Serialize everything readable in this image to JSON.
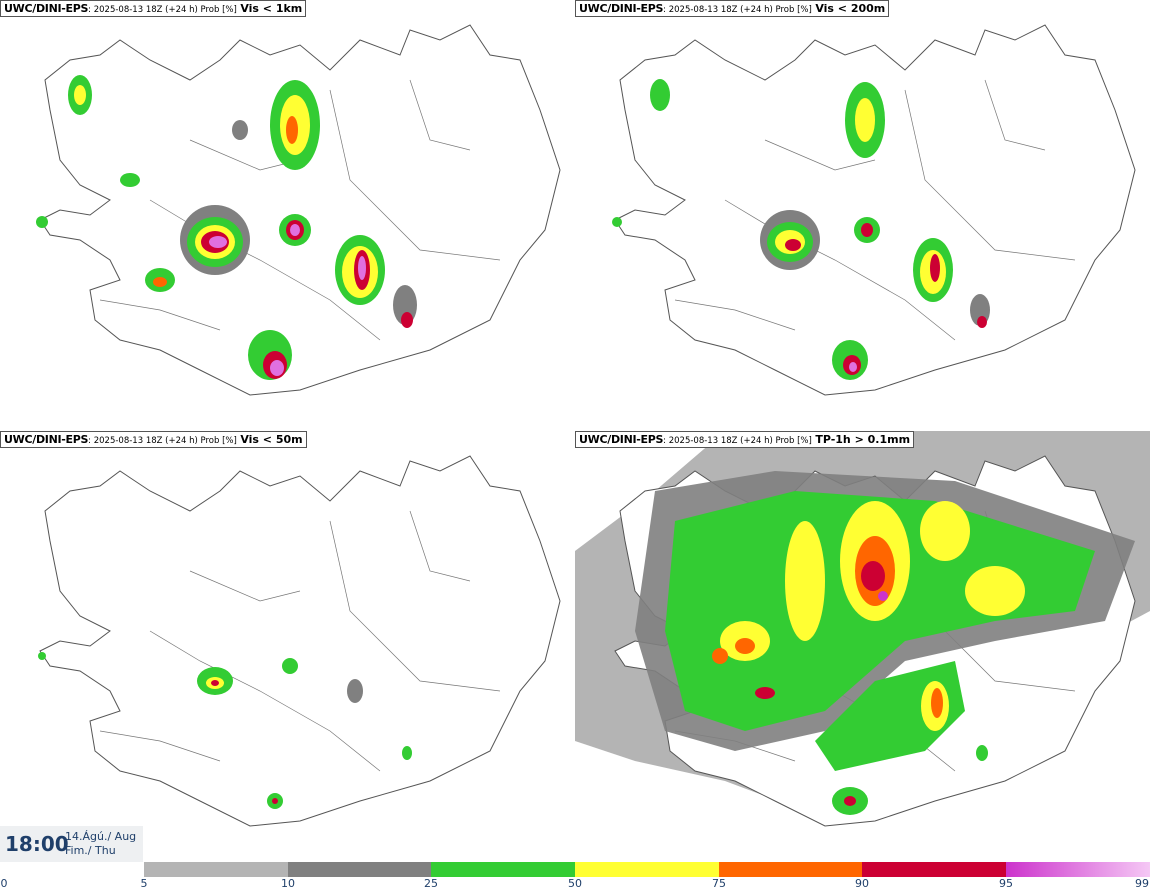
{
  "panels": [
    {
      "source": "UWC/DINI-EPS",
      "meta": ": 2025-08-13 18Z (+24 h) Prob [%]",
      "variable": "Vis < 1km"
    },
    {
      "source": "UWC/DINI-EPS",
      "meta": ": 2025-08-13 18Z (+24 h) Prob [%]",
      "variable": "Vis < 200m"
    },
    {
      "source": "UWC/DINI-EPS",
      "meta": ": 2025-08-13 18Z (+24 h) Prob [%]",
      "variable": "Vis < 50m"
    },
    {
      "source": "UWC/DINI-EPS",
      "meta": ": 2025-08-13 18Z (+24 h) Prob [%]",
      "variable": "TP-1h > 0.1mm"
    }
  ],
  "valid_time": {
    "time": "18:00",
    "date": "14.Ágú./ Aug",
    "weekday": "Fim./ Thu"
  },
  "colorbar": {
    "ticks": [
      "0",
      "5",
      "10",
      "25",
      "50",
      "75",
      "90",
      "95",
      "99"
    ],
    "colors": [
      "#b4b4b4",
      "#808080",
      "#33cc33",
      "#ffff33",
      "#ff6600",
      "#cc0033",
      "#cc33cc",
      "#f5c8f5"
    ]
  }
}
